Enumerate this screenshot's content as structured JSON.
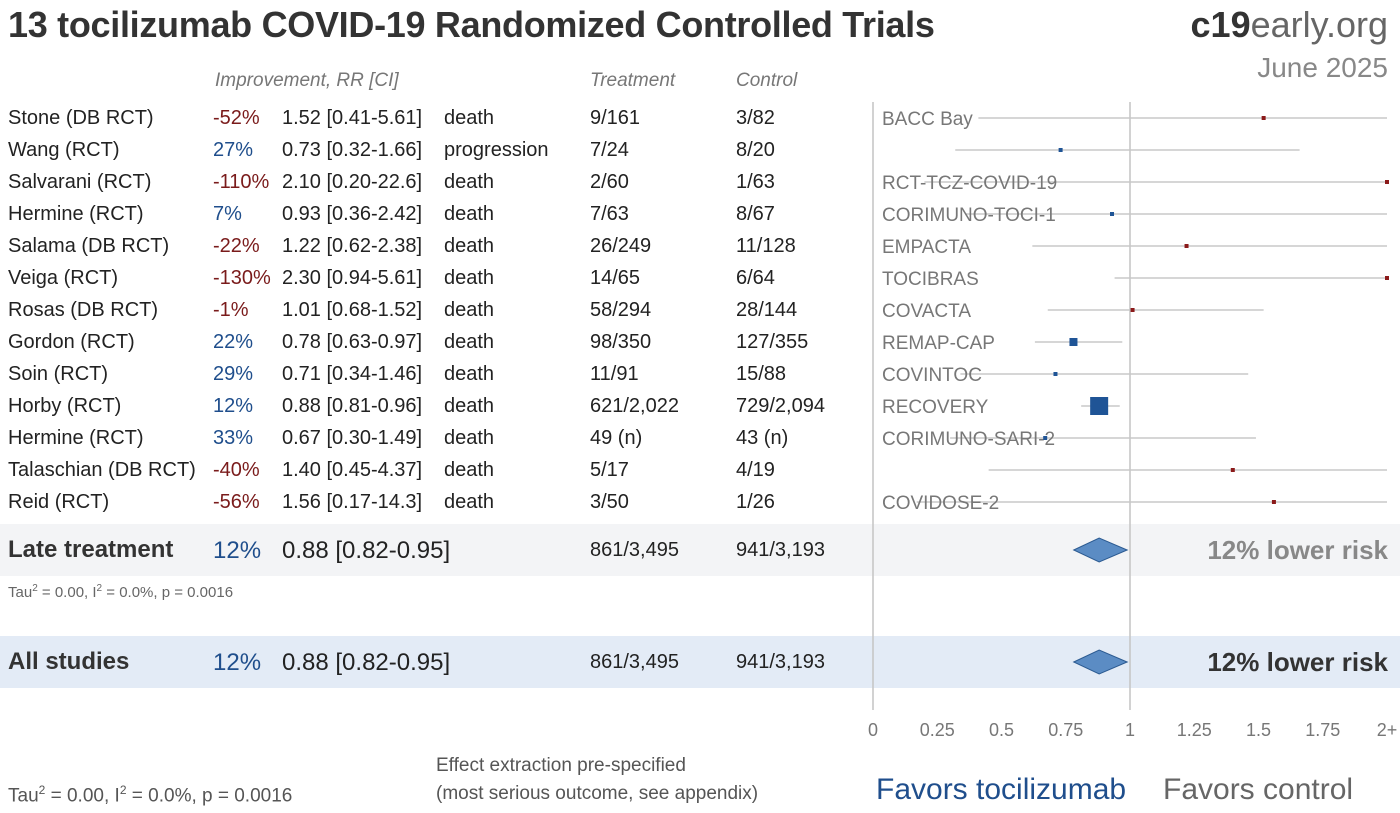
{
  "header": {
    "title": "13 tocilizumab COVID-19 Randomized Controlled Trials",
    "brand_bold": "c19",
    "brand_light": "early.org",
    "date": "June 2025"
  },
  "columns": {
    "improvement": "Improvement, RR [CI]",
    "treatment": "Treatment",
    "control": "Control"
  },
  "studies": [
    {
      "name": "Stone (DB RCT)",
      "improvement": "-52%",
      "rr_text": "1.52 [0.41-5.61]",
      "outcome": "death",
      "treatment": "9/161",
      "control": "3/82"
    },
    {
      "name": "Wang (RCT)",
      "improvement": "27%",
      "rr_text": "0.73 [0.32-1.66]",
      "outcome": "progression",
      "treatment": "7/24",
      "control": "8/20"
    },
    {
      "name": "Salvarani (RCT)",
      "improvement": "-110%",
      "rr_text": "2.10 [0.20-22.6]",
      "outcome": "death",
      "treatment": "2/60",
      "control": "1/63"
    },
    {
      "name": "Hermine (RCT)",
      "improvement": "7%",
      "rr_text": "0.93 [0.36-2.42]",
      "outcome": "death",
      "treatment": "7/63",
      "control": "8/67"
    },
    {
      "name": "Salama (DB RCT)",
      "improvement": "-22%",
      "rr_text": "1.22 [0.62-2.38]",
      "outcome": "death",
      "treatment": "26/249",
      "control": "11/128"
    },
    {
      "name": "Veiga (RCT)",
      "improvement": "-130%",
      "rr_text": "2.30 [0.94-5.61]",
      "outcome": "death",
      "treatment": "14/65",
      "control": "6/64"
    },
    {
      "name": "Rosas (DB RCT)",
      "improvement": "-1%",
      "rr_text": "1.01 [0.68-1.52]",
      "outcome": "death",
      "treatment": "58/294",
      "control": "28/144"
    },
    {
      "name": "Gordon (RCT)",
      "improvement": "22%",
      "rr_text": "0.78 [0.63-0.97]",
      "outcome": "death",
      "treatment": "98/350",
      "control": "127/355"
    },
    {
      "name": "Soin (RCT)",
      "improvement": "29%",
      "rr_text": "0.71 [0.34-1.46]",
      "outcome": "death",
      "treatment": "11/91",
      "control": "15/88"
    },
    {
      "name": "Horby (RCT)",
      "improvement": "12%",
      "rr_text": "0.88 [0.81-0.96]",
      "outcome": "death",
      "treatment": "621/2,022",
      "control": "729/2,094"
    },
    {
      "name": "Hermine (RCT)",
      "improvement": "33%",
      "rr_text": "0.67 [0.30-1.49]",
      "outcome": "death",
      "treatment": "49 (n)",
      "control": "43 (n)"
    },
    {
      "name": "Talaschian (DB RCT)",
      "improvement": "-40%",
      "rr_text": "1.40 [0.45-4.37]",
      "outcome": "death",
      "treatment": "5/17",
      "control": "4/19"
    },
    {
      "name": "Reid (RCT)",
      "improvement": "-56%",
      "rr_text": "1.56 [0.17-14.3]",
      "outcome": "death",
      "treatment": "3/50",
      "control": "1/26"
    }
  ],
  "late_treatment": {
    "label": "Late treatment",
    "improvement": "12%",
    "rr_text": "0.88 [0.82-0.95]",
    "treatment": "861/3,495",
    "control": "941/3,193",
    "risk": "12% lower risk",
    "stats": {
      "tau_prefix": "Tau",
      "tau_rest": " = 0.00, I",
      "i_rest": " = 0.0%, p = 0.0016",
      "sup": "2"
    }
  },
  "all_studies": {
    "label": "All studies",
    "improvement": "12%",
    "rr_text": "0.88 [0.82-0.95]",
    "treatment": "861/3,495",
    "control": "941/3,193",
    "risk": "12% lower risk"
  },
  "footer": {
    "stats": {
      "tau_prefix": "Tau",
      "tau_rest": " = 0.00, I",
      "i_rest": " = 0.0%, p = 0.0016",
      "sup": "2"
    },
    "note_line1": "Effect extraction pre-specified",
    "note_line2": "(most serious outcome, see appendix)",
    "favors_left": "Favors tocilizumab",
    "favors_right": "Favors control"
  },
  "chart_data": {
    "type": "forest",
    "x_ticks": [
      "0",
      "0.25",
      "0.5",
      "0.75",
      "1",
      "1.25",
      "1.5",
      "1.75",
      "2+"
    ],
    "x_tick_values": [
      0,
      0.25,
      0.5,
      0.75,
      1,
      1.25,
      1.5,
      1.75,
      2
    ],
    "xlim": [
      0,
      2
    ],
    "reference_line": 1,
    "trial_labels": [
      "BACC Bay",
      "",
      "RCT-TCZ-COVID-19",
      "CORIMUNO-TOCI-1",
      "EMPACTA",
      "TOCIBRAS",
      "COVACTA",
      "REMAP-CAP",
      "COVINTOC",
      "RECOVERY",
      "CORIMUNO-SARI-2",
      "",
      "COVIDOSE-2"
    ],
    "rr": [
      1.52,
      0.73,
      2.1,
      0.93,
      1.22,
      2.3,
      1.01,
      0.78,
      0.71,
      0.88,
      0.67,
      1.4,
      1.56
    ],
    "ci_low": [
      0.41,
      0.32,
      0.2,
      0.36,
      0.62,
      0.94,
      0.68,
      0.63,
      0.34,
      0.81,
      0.3,
      0.45,
      0.17
    ],
    "ci_high": [
      5.61,
      1.66,
      22.6,
      2.42,
      2.38,
      5.61,
      1.52,
      0.97,
      1.46,
      0.96,
      1.49,
      4.37,
      14.3
    ],
    "direction": [
      "harm",
      "benefit",
      "harm",
      "benefit",
      "harm",
      "harm",
      "harm",
      "benefit",
      "benefit",
      "benefit",
      "benefit",
      "harm",
      "harm"
    ],
    "weight": [
      "small",
      "small",
      "small",
      "small",
      "small",
      "small",
      "small",
      "medium",
      "small",
      "large",
      "small",
      "small",
      "small"
    ],
    "summary_late": {
      "rr": 0.88,
      "ci_low": 0.82,
      "ci_high": 0.95
    },
    "summary_all": {
      "rr": 0.88,
      "ci_low": 0.82,
      "ci_high": 0.95
    },
    "colors": {
      "harm": "#8b1a1a",
      "benefit": "#1f5496",
      "diamond": "#5b8cc4",
      "ci": "#c8c8c8",
      "axis": "#c4c4c4"
    }
  }
}
